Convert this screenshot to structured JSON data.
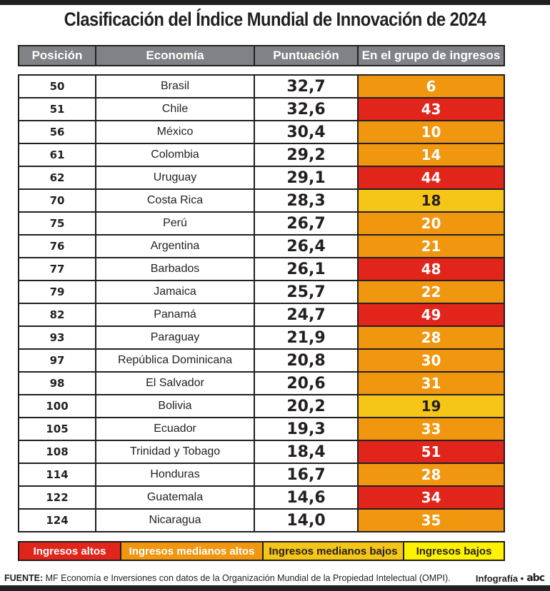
{
  "title": "Clasificación del Índice Mundial de Innovación de 2024",
  "colors": {
    "ingresos_altos": "#e1251b",
    "ingresos_medianos_altos": "#f0960f",
    "ingresos_medianos_bajos": "#f5c518",
    "ingresos_bajos": "#fff200",
    "header_bg": "#808285"
  },
  "chart_data": {
    "type": "table",
    "title": "Clasificación del Índice Mundial de Innovación de 2024",
    "columns": [
      "Posición",
      "Economía",
      "Puntuación",
      "En el grupo de ingresos"
    ],
    "rows": [
      {
        "posicion": "50",
        "economia": "Brasil",
        "puntuacion": "32,7",
        "grupo": "6",
        "categoria": "ingresos_medianos_altos"
      },
      {
        "posicion": "51",
        "economia": "Chile",
        "puntuacion": "32,6",
        "grupo": "43",
        "categoria": "ingresos_altos"
      },
      {
        "posicion": "56",
        "economia": "México",
        "puntuacion": "30,4",
        "grupo": "10",
        "categoria": "ingresos_medianos_altos"
      },
      {
        "posicion": "61",
        "economia": "Colombia",
        "puntuacion": "29,2",
        "grupo": "14",
        "categoria": "ingresos_medianos_altos"
      },
      {
        "posicion": "62",
        "economia": "Uruguay",
        "puntuacion": "29,1",
        "grupo": "44",
        "categoria": "ingresos_altos"
      },
      {
        "posicion": "70",
        "economia": "Costa Rica",
        "puntuacion": "28,3",
        "grupo": "18",
        "categoria": "ingresos_medianos_bajos"
      },
      {
        "posicion": "75",
        "economia": "Perú",
        "puntuacion": "26,7",
        "grupo": "20",
        "categoria": "ingresos_medianos_altos"
      },
      {
        "posicion": "76",
        "economia": "Argentina",
        "puntuacion": "26,4",
        "grupo": "21",
        "categoria": "ingresos_medianos_altos"
      },
      {
        "posicion": "77",
        "economia": "Barbados",
        "puntuacion": "26,1",
        "grupo": "48",
        "categoria": "ingresos_altos"
      },
      {
        "posicion": "79",
        "economia": "Jamaica",
        "puntuacion": "25,7",
        "grupo": "22",
        "categoria": "ingresos_medianos_altos"
      },
      {
        "posicion": "82",
        "economia": "Panamá",
        "puntuacion": "24,7",
        "grupo": "49",
        "categoria": "ingresos_altos"
      },
      {
        "posicion": "93",
        "economia": "Paraguay",
        "puntuacion": "21,9",
        "grupo": "28",
        "categoria": "ingresos_medianos_altos"
      },
      {
        "posicion": "97",
        "economia": "República Dominicana",
        "puntuacion": "20,8",
        "grupo": "30",
        "categoria": "ingresos_medianos_altos"
      },
      {
        "posicion": "98",
        "economia": "El Salvador",
        "puntuacion": "20,6",
        "grupo": "31",
        "categoria": "ingresos_medianos_altos"
      },
      {
        "posicion": "100",
        "economia": "Bolivia",
        "puntuacion": "20,2",
        "grupo": "19",
        "categoria": "ingresos_medianos_bajos"
      },
      {
        "posicion": "105",
        "economia": "Ecuador",
        "puntuacion": "19,3",
        "grupo": "33",
        "categoria": "ingresos_medianos_altos"
      },
      {
        "posicion": "108",
        "economia": "Trinidad y Tobago",
        "puntuacion": "18,4",
        "grupo": "51",
        "categoria": "ingresos_altos"
      },
      {
        "posicion": "114",
        "economia": "Honduras",
        "puntuacion": "16,7",
        "grupo": "28",
        "categoria": "ingresos_medianos_altos"
      },
      {
        "posicion": "122",
        "economia": "Guatemala",
        "puntuacion": "14,6",
        "grupo": "34",
        "categoria": "ingresos_altos"
      },
      {
        "posicion": "124",
        "economia": "Nicaragua",
        "puntuacion": "14,0",
        "grupo": "35",
        "categoria": "ingresos_medianos_altos"
      }
    ],
    "legend": [
      {
        "key": "ingresos_altos",
        "label": "Ingresos altos"
      },
      {
        "key": "ingresos_medianos_altos",
        "label": "Ingresos medianos altos"
      },
      {
        "key": "ingresos_medianos_bajos",
        "label": "Ingresos medianos bajos"
      },
      {
        "key": "ingresos_bajos",
        "label": "Ingresos bajos"
      }
    ]
  },
  "footer": {
    "source_label": "FUENTE:",
    "source_text": " MF Economía e Inversiones con datos de la Organización Mundial de la Propiedad Intelectual (OMPI).",
    "credit": "Infografía •",
    "logo": "abc"
  }
}
